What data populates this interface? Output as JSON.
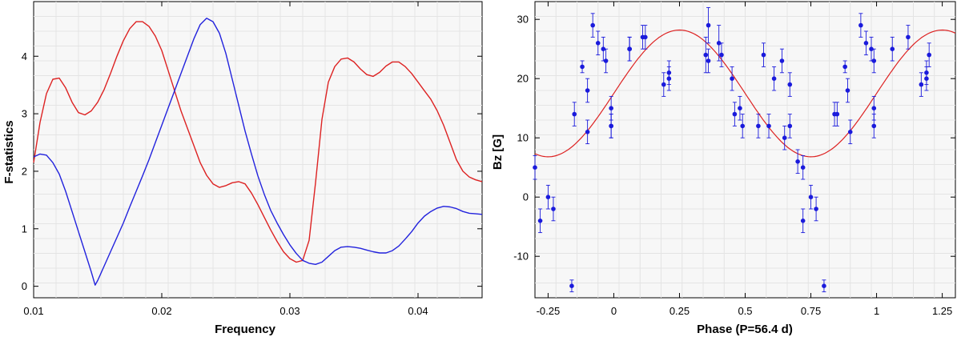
{
  "chart_data": [
    {
      "type": "line",
      "xlabel": "Frequency",
      "ylabel": "F-statistics",
      "xlim": [
        0.01,
        0.045
      ],
      "ylim": [
        -0.2,
        4.95
      ],
      "xticks": [
        0.01,
        0.02,
        0.03,
        0.04
      ],
      "xtick_labels": [
        "0.01",
        "0.02",
        "0.03",
        "0.04"
      ],
      "yticks": [
        0,
        1,
        2,
        3,
        4
      ],
      "ytick_labels": [
        "0",
        "1",
        "2",
        "3",
        "4"
      ],
      "grid": true,
      "series": [
        {
          "color": "#dd2222",
          "x": [
            0.01,
            0.0105,
            0.011,
            0.0115,
            0.012,
            0.0125,
            0.013,
            0.0135,
            0.014,
            0.0145,
            0.015,
            0.0155,
            0.016,
            0.0165,
            0.017,
            0.0175,
            0.018,
            0.0185,
            0.019,
            0.0195,
            0.02,
            0.0205,
            0.021,
            0.0215,
            0.022,
            0.0225,
            0.023,
            0.0235,
            0.024,
            0.0245,
            0.025,
            0.0255,
            0.026,
            0.0265,
            0.027,
            0.0275,
            0.028,
            0.0285,
            0.029,
            0.0295,
            0.03,
            0.0305,
            0.031,
            0.0315,
            0.032,
            0.0325,
            0.033,
            0.0335,
            0.034,
            0.0345,
            0.035,
            0.0355,
            0.036,
            0.0365,
            0.037,
            0.0375,
            0.038,
            0.0385,
            0.039,
            0.0395,
            0.04,
            0.0405,
            0.041,
            0.0415,
            0.042,
            0.0425,
            0.043,
            0.0435,
            0.044,
            0.0445,
            0.045
          ],
          "y": [
            2.15,
            2.85,
            3.35,
            3.6,
            3.62,
            3.45,
            3.2,
            3.02,
            2.98,
            3.05,
            3.2,
            3.42,
            3.7,
            4.0,
            4.27,
            4.48,
            4.6,
            4.6,
            4.52,
            4.35,
            4.1,
            3.75,
            3.4,
            3.05,
            2.75,
            2.45,
            2.15,
            1.93,
            1.78,
            1.72,
            1.75,
            1.8,
            1.82,
            1.78,
            1.62,
            1.42,
            1.2,
            0.98,
            0.78,
            0.6,
            0.48,
            0.42,
            0.45,
            0.8,
            1.8,
            2.9,
            3.55,
            3.82,
            3.95,
            3.97,
            3.9,
            3.78,
            3.68,
            3.65,
            3.72,
            3.83,
            3.9,
            3.9,
            3.82,
            3.7,
            3.55,
            3.4,
            3.25,
            3.05,
            2.8,
            2.5,
            2.2,
            2.0,
            1.9,
            1.85,
            1.82
          ]
        },
        {
          "color": "#2222dd",
          "x": [
            0.01,
            0.0105,
            0.011,
            0.0115,
            0.012,
            0.0125,
            0.013,
            0.0135,
            0.014,
            0.0145,
            0.0148,
            0.015,
            0.0155,
            0.016,
            0.0165,
            0.017,
            0.0175,
            0.018,
            0.0185,
            0.019,
            0.0195,
            0.02,
            0.0205,
            0.021,
            0.0215,
            0.022,
            0.0225,
            0.023,
            0.0235,
            0.024,
            0.0245,
            0.025,
            0.0255,
            0.026,
            0.0265,
            0.027,
            0.0275,
            0.028,
            0.0285,
            0.029,
            0.0295,
            0.03,
            0.0305,
            0.031,
            0.0315,
            0.032,
            0.0325,
            0.033,
            0.0335,
            0.034,
            0.0345,
            0.035,
            0.0355,
            0.036,
            0.0365,
            0.037,
            0.0375,
            0.038,
            0.0385,
            0.039,
            0.0395,
            0.04,
            0.0405,
            0.041,
            0.0415,
            0.042,
            0.0425,
            0.043,
            0.0435,
            0.044,
            0.0445,
            0.045
          ],
          "y": [
            2.25,
            2.3,
            2.28,
            2.15,
            1.95,
            1.65,
            1.3,
            0.95,
            0.6,
            0.25,
            0.02,
            0.1,
            0.35,
            0.6,
            0.85,
            1.1,
            1.38,
            1.65,
            1.92,
            2.2,
            2.5,
            2.8,
            3.1,
            3.4,
            3.7,
            4.0,
            4.3,
            4.55,
            4.66,
            4.6,
            4.4,
            4.05,
            3.6,
            3.15,
            2.7,
            2.3,
            1.92,
            1.6,
            1.32,
            1.1,
            0.9,
            0.72,
            0.57,
            0.45,
            0.4,
            0.38,
            0.42,
            0.52,
            0.62,
            0.68,
            0.69,
            0.68,
            0.66,
            0.63,
            0.6,
            0.58,
            0.58,
            0.62,
            0.7,
            0.82,
            0.95,
            1.1,
            1.22,
            1.3,
            1.36,
            1.39,
            1.38,
            1.35,
            1.3,
            1.27,
            1.26,
            1.25
          ]
        }
      ]
    },
    {
      "type": "scatter",
      "xlabel": "Phase (P=56.4 d)",
      "ylabel": "Bz [G]",
      "xlim": [
        -0.3,
        1.3
      ],
      "ylim": [
        -17,
        33
      ],
      "xticks": [
        -0.25,
        0,
        0.25,
        0.5,
        0.75,
        1,
        1.25
      ],
      "xtick_labels": [
        "-0.25",
        "0",
        "0.25",
        "0.5",
        "0.75",
        "1",
        "1.25"
      ],
      "yticks": [
        -10,
        0,
        10,
        20,
        30
      ],
      "ytick_labels": [
        "-10",
        "0",
        "10",
        "20",
        "30"
      ],
      "grid": true,
      "fit": {
        "color": "#dd2222",
        "mean": 17.5,
        "amplitude": 10.7,
        "phase_of_maximum": 0.25
      },
      "points": {
        "color": "#1a1adc",
        "x": [
          -0.3,
          -0.28,
          -0.25,
          -0.23,
          -0.16,
          -0.15,
          -0.12,
          -0.1,
          -0.1,
          -0.08,
          -0.06,
          -0.04,
          -0.03,
          -0.01,
          -0.01,
          -0.01,
          0.06,
          0.06,
          0.06,
          0.11,
          0.12,
          0.19,
          0.21,
          0.21,
          0.35,
          0.36,
          0.36,
          0.4,
          0.41,
          0.45,
          0.46,
          0.48,
          0.49,
          0.55,
          0.57,
          0.59,
          0.61,
          0.64,
          0.65,
          0.67,
          0.67,
          0.7,
          0.72,
          0.72,
          0.75,
          0.77,
          0.8,
          0.84,
          0.85,
          0.88,
          0.89,
          0.9,
          0.94,
          0.96,
          0.98,
          0.99,
          0.99,
          0.99,
          1.06,
          1.12,
          1.17,
          1.19,
          1.19,
          1.2
        ],
        "y": [
          5,
          -4,
          0,
          -2,
          -15,
          14,
          22,
          18,
          11,
          29,
          26,
          25,
          23,
          15,
          12,
          12,
          25,
          25,
          25,
          27,
          27,
          19,
          20,
          21,
          24,
          29,
          23,
          26,
          24,
          20,
          14,
          15,
          12,
          12,
          24,
          12,
          20,
          23,
          10,
          19,
          12,
          6,
          5,
          -4,
          0,
          -2,
          -15,
          14,
          14,
          22,
          18,
          11,
          29,
          26,
          25,
          23,
          15,
          12,
          25,
          27,
          19,
          20,
          21,
          24
        ],
        "err": [
          2,
          2,
          2,
          2,
          1,
          2,
          1,
          2,
          2,
          2,
          2,
          2,
          2,
          2,
          2,
          2,
          2,
          2,
          2,
          2,
          2,
          2,
          2,
          2,
          3,
          3,
          2,
          3,
          2,
          2,
          2,
          2,
          2,
          2,
          2,
          2,
          2,
          2,
          2,
          2,
          2,
          2,
          2,
          2,
          2,
          2,
          1,
          2,
          2,
          1,
          2,
          2,
          2,
          2,
          2,
          2,
          2,
          2,
          2,
          2,
          2,
          2,
          2,
          2
        ]
      }
    }
  ]
}
